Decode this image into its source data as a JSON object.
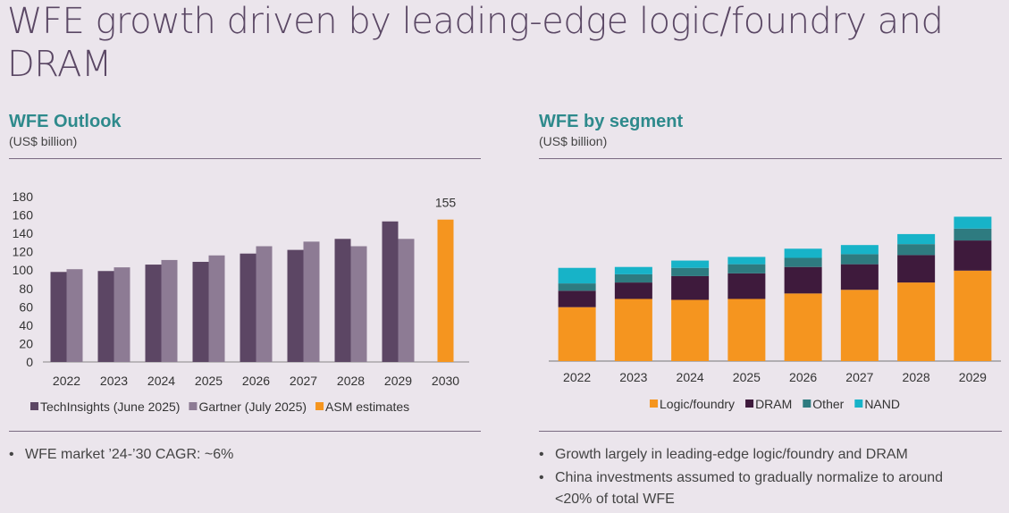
{
  "title": "WFE growth driven by leading-edge logic/foundry and DRAM",
  "chart_data": [
    {
      "type": "bar",
      "title": "WFE Outlook",
      "subtitle": "(US$ billion)",
      "categories": [
        "2022",
        "2023",
        "2024",
        "2025",
        "2026",
        "2027",
        "2028",
        "2029",
        "2030"
      ],
      "ylim": [
        0,
        180
      ],
      "yticks": [
        0,
        20,
        40,
        60,
        80,
        100,
        120,
        140,
        160,
        180
      ],
      "series": [
        {
          "name": "TechInsights (June 2025)",
          "color": "#5c4664",
          "values": [
            98,
            99,
            106,
            109,
            118,
            122,
            134,
            153,
            null
          ]
        },
        {
          "name": "Gartner (July 2025)",
          "color": "#8d7b94",
          "values": [
            101,
            103,
            111,
            116,
            126,
            131,
            126,
            134,
            null
          ]
        },
        {
          "name": "ASM estimates",
          "color": "#f5951f",
          "values": [
            null,
            null,
            null,
            null,
            null,
            null,
            null,
            null,
            155
          ]
        }
      ],
      "data_labels": [
        {
          "category": "2030",
          "text": "155"
        }
      ],
      "legend": "bottom"
    },
    {
      "type": "bar",
      "stacked": true,
      "title": "WFE by segment",
      "subtitle": "(US$ billion)",
      "categories": [
        "2022",
        "2023",
        "2024",
        "2025",
        "2026",
        "2027",
        "2028",
        "2029"
      ],
      "ylim": [
        0,
        180
      ],
      "series": [
        {
          "name": "Logic/foundry",
          "color": "#f5951f",
          "values": [
            59,
            68,
            67,
            68,
            74,
            78,
            86,
            99
          ]
        },
        {
          "name": "DRAM",
          "color": "#3e1a3c",
          "values": [
            18,
            18,
            26,
            28,
            29,
            28,
            30,
            33
          ]
        },
        {
          "name": "Other",
          "color": "#2e7b80",
          "values": [
            8,
            9,
            9,
            10,
            10,
            11,
            12,
            13
          ]
        },
        {
          "name": "NAND",
          "color": "#17b3c8",
          "values": [
            17,
            8,
            8,
            8,
            10,
            10,
            11,
            13
          ]
        }
      ],
      "legend": "bottom"
    }
  ],
  "bullets_left": [
    "WFE market ’24-’30 CAGR: ~6%"
  ],
  "bullets_right": [
    "Growth largely in leading-edge logic/foundry and DRAM",
    "China investments assumed to gradually normalize to around <20% of total WFE"
  ]
}
